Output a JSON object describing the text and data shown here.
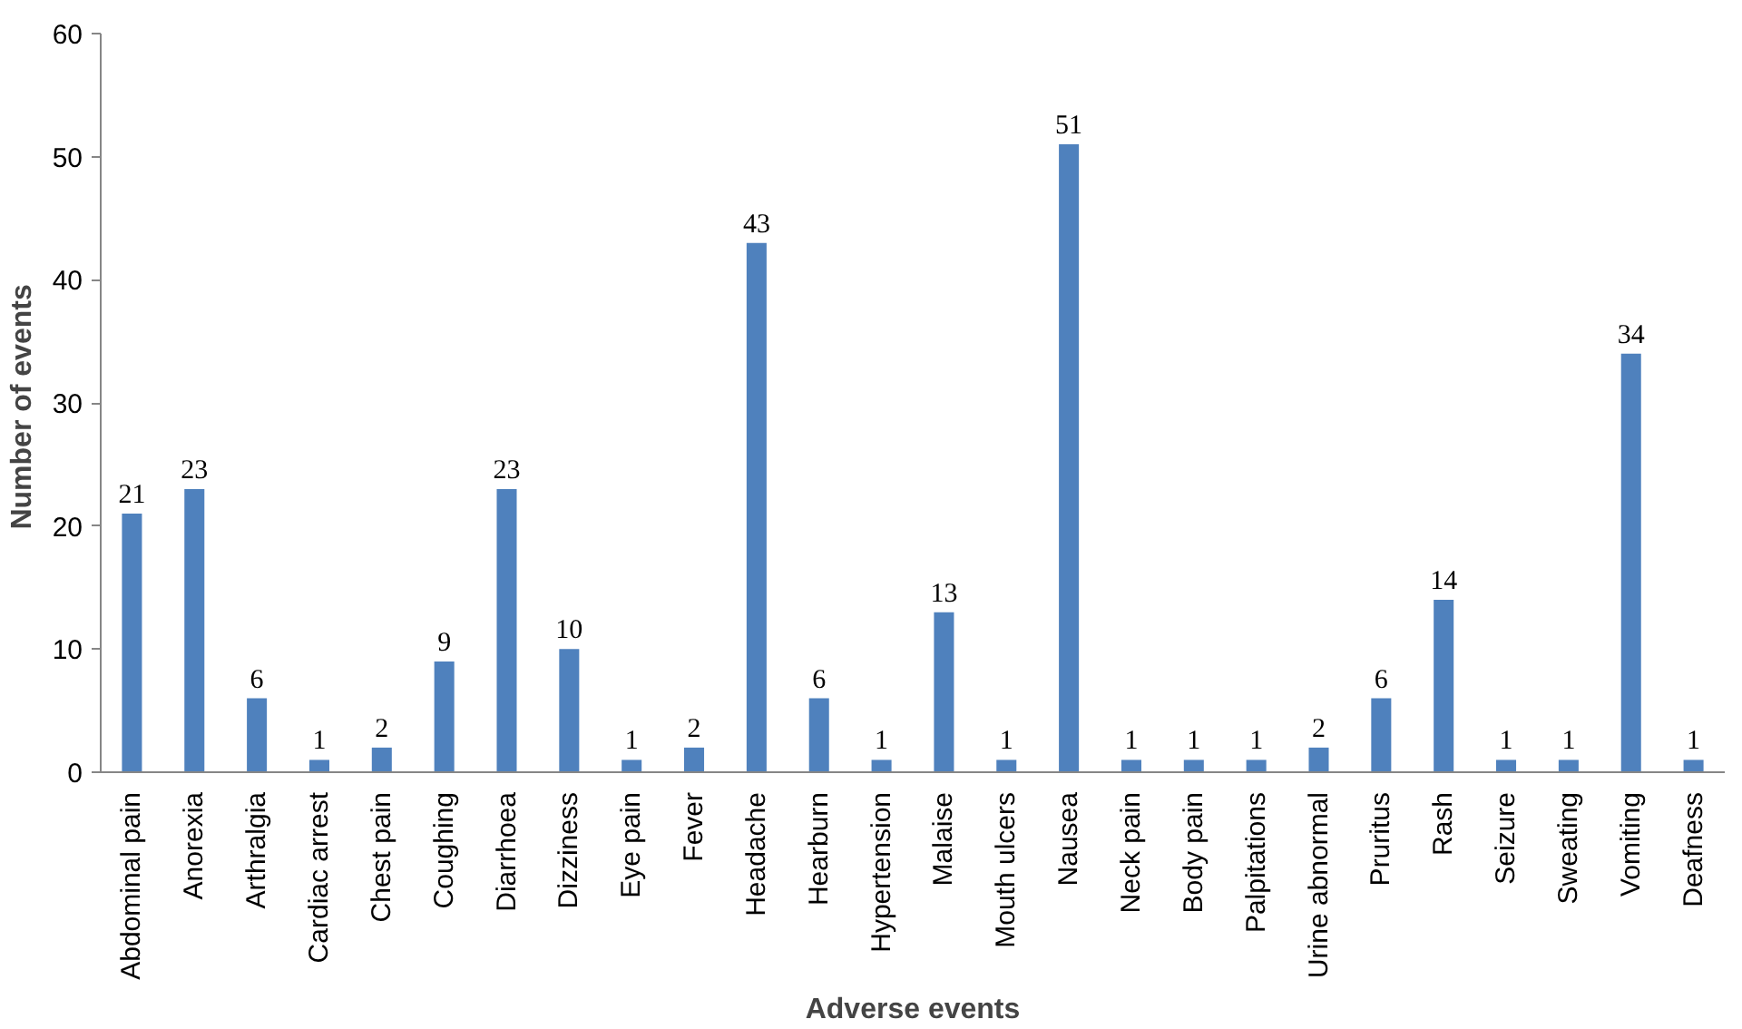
{
  "chart_data": {
    "type": "bar",
    "xlabel": "Adverse events",
    "ylabel": "Number  of events",
    "categories": [
      "Abdominal pain",
      "Anorexia",
      "Arthralgia",
      "Cardiac arrest",
      "Chest pain",
      "Coughing",
      "Diarrhoea",
      "Dizziness",
      "Eye pain",
      "Fever",
      "Headache",
      "Hearburn",
      "Hypertension",
      "Malaise",
      "Mouth ulcers",
      "Nausea",
      "Neck pain",
      "Body pain",
      "Palpitations",
      "Urine abnormal",
      "Pruritus",
      "Rash",
      "Seizure",
      "Sweating",
      "Vomiting",
      "Deafness"
    ],
    "values": [
      21,
      23,
      6,
      1,
      2,
      9,
      23,
      10,
      1,
      2,
      43,
      6,
      1,
      13,
      1,
      51,
      1,
      1,
      1,
      2,
      6,
      14,
      1,
      1,
      34,
      1
    ],
    "color": "#4f81bd",
    "ylim": [
      0,
      60
    ],
    "yticks": [
      0,
      10,
      20,
      30,
      40,
      50,
      60
    ],
    "grid": false,
    "data_labels": true
  }
}
